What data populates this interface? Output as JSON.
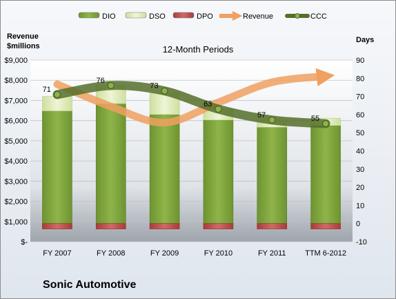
{
  "chart_data": {
    "type": "bar",
    "subtitle": "12-Month Periods",
    "company": "Sonic Automotive",
    "ylabel_left": [
      "Revenue",
      "$millions"
    ],
    "ylabel_right": "Days",
    "categories": [
      "FY 2007",
      "FY 2008",
      "FY 2009",
      "FY 2010",
      "FY 2011",
      "TTM 6-2012"
    ],
    "left_axis": {
      "min": 0,
      "max": 9000,
      "step": 1000,
      "tick_labels": [
        "$-",
        "$1,000",
        "$2,000",
        "$3,000",
        "$4,000",
        "$5,000",
        "$6,000",
        "$7,000",
        "$8,000",
        "$9,000"
      ]
    },
    "right_axis": {
      "min": -10,
      "max": 90,
      "step": 10,
      "tick_labels": [
        "-10",
        "0",
        "10",
        "20",
        "30",
        "40",
        "50",
        "60",
        "70",
        "80",
        "90"
      ]
    },
    "legend": [
      "DIO",
      "DSO",
      "DPO",
      "Revenue",
      "CCC"
    ],
    "legend_position": "top",
    "series": [
      {
        "name": "DIO",
        "axis": "right",
        "values": [
          62,
          66,
          60,
          57,
          53,
          54
        ],
        "color": "#7da33a"
      },
      {
        "name": "DSO",
        "axis": "right",
        "values": [
          8,
          10,
          12,
          6,
          4,
          4
        ],
        "color": "#dbe8b6"
      },
      {
        "name": "DPO",
        "axis": "right",
        "values": [
          -3,
          -3,
          -3,
          -3,
          -3,
          -3
        ],
        "color": "#c0504d"
      },
      {
        "name": "Revenue",
        "axis": "left",
        "values": [
          7800,
          6700,
          5900,
          6900,
          7900,
          8200
        ],
        "color": "#f0a060"
      },
      {
        "name": "CCC",
        "axis": "right",
        "values": [
          71,
          76,
          73,
          63,
          57,
          55
        ],
        "data_labels": [
          "71",
          "76",
          "73",
          "63",
          "57",
          "55"
        ],
        "color": "#5b7a2e"
      }
    ]
  }
}
